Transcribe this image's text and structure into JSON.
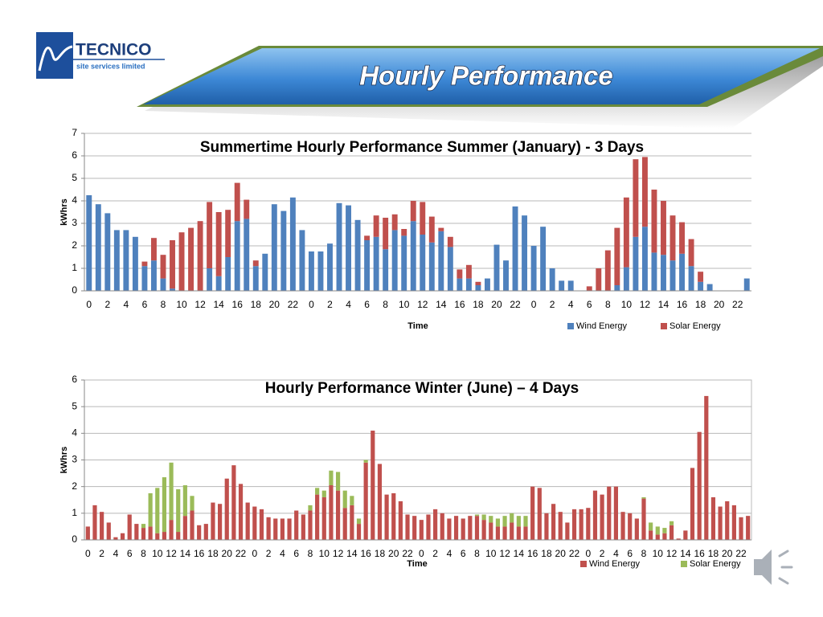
{
  "header": {
    "logo_name": "TECNICO",
    "logo_tagline": "site services limited",
    "banner_title": "Hourly Performance"
  },
  "chart_data": [
    {
      "type": "bar",
      "stacked": true,
      "title": "Summertime Hourly Performance Summer (January) - 3 Days",
      "x_label": "Time",
      "y_label": "kWhrs",
      "grid": true,
      "legend": "bottom-right",
      "ylim": [
        0,
        7
      ],
      "yticks": [
        0,
        1,
        2,
        3,
        4,
        5,
        6,
        7
      ],
      "categories": [
        "0",
        null,
        "2",
        null,
        "4",
        null,
        "6",
        null,
        "8",
        null,
        "10",
        null,
        "12",
        null,
        "14",
        null,
        "16",
        null,
        "18",
        null,
        "20",
        null,
        "22",
        null,
        "0",
        null,
        "2",
        null,
        "4",
        null,
        "6",
        null,
        "8",
        null,
        "10",
        null,
        "12",
        null,
        "14",
        null,
        "16",
        null,
        "18",
        null,
        "20",
        null,
        "22",
        null,
        "0",
        null,
        "2",
        null,
        "4",
        null,
        "6",
        null,
        "8",
        null,
        "10",
        null,
        "12",
        null,
        "14",
        null,
        "16",
        null,
        "18",
        null,
        "20",
        null,
        "22",
        null
      ],
      "series": [
        {
          "name": "Wind Energy",
          "color": "#4f81bd",
          "values": [
            4.25,
            3.85,
            3.45,
            2.7,
            2.7,
            2.4,
            1.1,
            1.35,
            0.55,
            0.1,
            0,
            0,
            0,
            1.0,
            0.65,
            1.5,
            3.1,
            3.2,
            1.1,
            1.65,
            3.85,
            3.55,
            4.15,
            2.7,
            1.75,
            1.75,
            2.1,
            3.9,
            3.8,
            3.15,
            2.25,
            2.4,
            1.85,
            2.7,
            2.45,
            3.1,
            2.5,
            2.15,
            2.65,
            1.95,
            0.55,
            0.55,
            0.25,
            0.55,
            2.05,
            1.35,
            3.75,
            3.35,
            2.0,
            2.85,
            1.0,
            0.45,
            0.45,
            0,
            0,
            0,
            0,
            0.25,
            1.05,
            2.4,
            2.85,
            1.7,
            1.6,
            1.35,
            1.65,
            1.1,
            0.4,
            0.3,
            0,
            0,
            0,
            0.55
          ]
        },
        {
          "name": "Solar Energy",
          "color": "#c0504d",
          "values": [
            0,
            0,
            0,
            0,
            0,
            0,
            0.2,
            1.0,
            1.05,
            2.15,
            2.6,
            2.8,
            3.1,
            2.95,
            2.85,
            2.1,
            1.7,
            0.85,
            0.25,
            0,
            0,
            0,
            0,
            0,
            0,
            0,
            0,
            0,
            0,
            0,
            0.2,
            0.95,
            1.4,
            0.7,
            0.3,
            0.9,
            1.45,
            1.15,
            0.15,
            0.45,
            0.4,
            0.6,
            0.15,
            0,
            0,
            0,
            0,
            0,
            0,
            0,
            0,
            0,
            0,
            0,
            0.2,
            1.0,
            1.8,
            2.55,
            3.1,
            3.45,
            3.1,
            2.8,
            2.4,
            2.0,
            1.4,
            1.2,
            0.45,
            0,
            0,
            0,
            0,
            0
          ]
        }
      ]
    },
    {
      "type": "bar",
      "stacked": true,
      "title": "Hourly Performance Winter (June) – 4 Days",
      "x_label": "Time",
      "y_label": "kWhrs",
      "grid": true,
      "legend": "bottom-right",
      "ylim": [
        0,
        6
      ],
      "yticks": [
        0,
        1,
        2,
        3,
        4,
        5,
        6
      ],
      "categories": [
        "0",
        null,
        "2",
        null,
        "4",
        null,
        "6",
        null,
        "8",
        null,
        "10",
        null,
        "12",
        null,
        "14",
        null,
        "16",
        null,
        "18",
        null,
        "20",
        null,
        "22",
        null,
        "0",
        null,
        "2",
        null,
        "4",
        null,
        "6",
        null,
        "8",
        null,
        "10",
        null,
        "12",
        null,
        "14",
        null,
        "16",
        null,
        "18",
        null,
        "20",
        null,
        "22",
        null,
        "0",
        null,
        "2",
        null,
        "4",
        null,
        "6",
        null,
        "8",
        null,
        "10",
        null,
        "12",
        null,
        "14",
        null,
        "16",
        null,
        "18",
        null,
        "20",
        null,
        "22",
        null,
        "0",
        null,
        "2",
        null,
        "4",
        null,
        "6",
        null,
        "8",
        null,
        "10",
        null,
        "12",
        null,
        "14",
        null,
        "16",
        null,
        "18",
        null,
        "20",
        null,
        "22",
        null
      ],
      "series": [
        {
          "name": "Wind Energy",
          "color": "#c0504d",
          "values": [
            0.5,
            1.3,
            1.05,
            0.65,
            0.1,
            0.25,
            0.95,
            0.6,
            0.45,
            0.5,
            0.25,
            0.3,
            0.75,
            0.3,
            0.9,
            1.1,
            0.55,
            0.6,
            1.4,
            1.35,
            2.3,
            2.8,
            2.1,
            1.4,
            1.25,
            1.15,
            0.85,
            0.8,
            0.8,
            0.8,
            1.1,
            0.95,
            1.1,
            1.7,
            1.6,
            2.05,
            1.85,
            1.2,
            1.3,
            0.6,
            2.9,
            4.1,
            2.85,
            1.7,
            1.75,
            1.45,
            0.95,
            0.9,
            0.75,
            0.95,
            1.15,
            1.0,
            0.8,
            0.9,
            0.8,
            0.9,
            0.9,
            0.75,
            0.65,
            0.5,
            0.5,
            0.65,
            0.5,
            0.5,
            2.0,
            1.95,
            1.0,
            1.35,
            1.05,
            0.65,
            1.15,
            1.15,
            1.2,
            1.85,
            1.7,
            2.0,
            2.0,
            1.05,
            1.0,
            0.8,
            1.55,
            0.35,
            0.2,
            0.25,
            0.55,
            0.05,
            0.35,
            2.7,
            4.05,
            5.4,
            1.6,
            1.25,
            1.45,
            1.3,
            0.85,
            0.9
          ]
        },
        {
          "name": "Solar Energy",
          "color": "#9bbb59",
          "values": [
            0,
            0,
            0,
            0,
            0,
            0,
            0,
            0,
            0.15,
            1.25,
            1.7,
            2.05,
            2.15,
            1.6,
            1.15,
            0.55,
            0,
            0,
            0,
            0,
            0,
            0,
            0,
            0,
            0,
            0,
            0,
            0,
            0,
            0,
            0,
            0,
            0.2,
            0.25,
            0.25,
            0.55,
            0.7,
            0.65,
            0.35,
            0.2,
            0.1,
            0,
            0,
            0,
            0,
            0,
            0,
            0,
            0,
            0,
            0,
            0,
            0,
            0,
            0,
            0,
            0.05,
            0.2,
            0.25,
            0.3,
            0.4,
            0.35,
            0.4,
            0.4,
            0,
            0,
            0,
            0,
            0,
            0,
            0,
            0,
            0,
            0,
            0,
            0,
            0,
            0,
            0,
            0,
            0.05,
            0.3,
            0.3,
            0.2,
            0.15,
            0,
            0,
            0,
            0,
            0,
            0,
            0,
            0,
            0,
            0,
            0
          ]
        }
      ]
    }
  ]
}
